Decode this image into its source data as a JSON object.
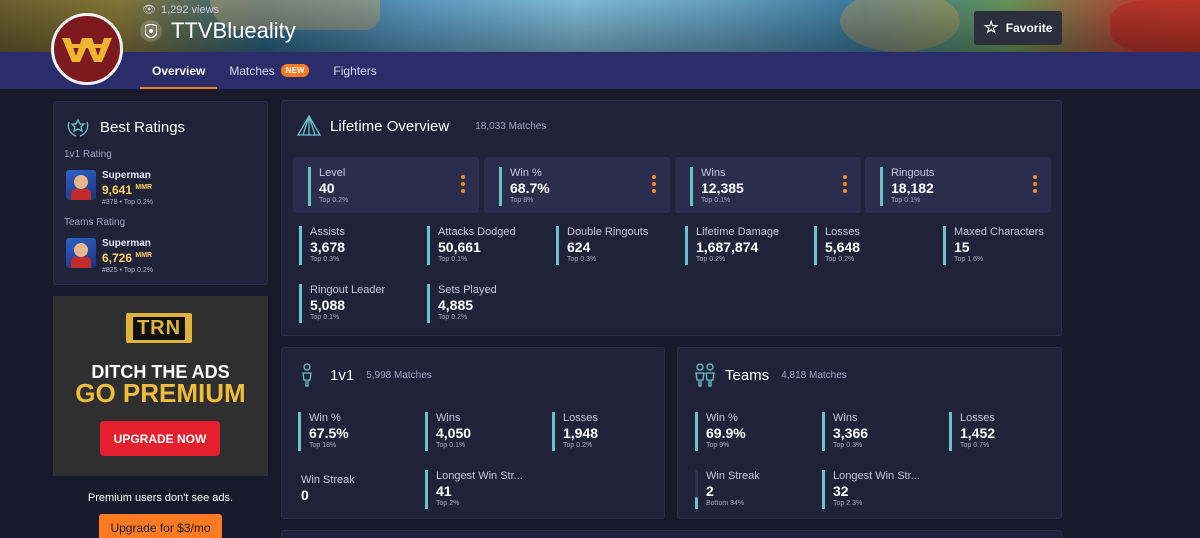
{
  "header": {
    "views": "1,292 views",
    "player_name": "TTVBlueality",
    "favorite_label": "Favorite",
    "icons": {
      "views": "eye-icon",
      "platform": "platform-shield-icon",
      "favorite": "star-icon",
      "avatar": "wonder-woman-emblem"
    },
    "colors": {
      "nav_bg": "#2b2d6b",
      "accent": "#ff7a22",
      "avatar_bg": "#7d1a1f"
    }
  },
  "nav": {
    "tabs": [
      {
        "label": "Overview",
        "active": true
      },
      {
        "label": "Matches",
        "badge": "NEW"
      },
      {
        "label": "Fighters"
      }
    ]
  },
  "best_ratings": {
    "title": "Best Ratings",
    "groups": [
      {
        "label": "1v1 Rating",
        "hero": "Superman",
        "value": "9,641",
        "unit": "MMR",
        "rank": "#378 • Top 0.2%"
      },
      {
        "label": "Teams Rating",
        "hero": "Superman",
        "value": "6,726",
        "unit": "MMR",
        "rank": "#825 • Top 0.2%"
      }
    ]
  },
  "ad": {
    "logo": "TRN",
    "line1": "DITCH THE ADS",
    "line2": "GO PREMIUM",
    "button": "UPGRADE NOW"
  },
  "premium": {
    "text": "Premium users don't see ads.",
    "button": "Upgrade for $3/mo"
  },
  "lifetime": {
    "title": "Lifetime Overview",
    "matches": "18,033 Matches",
    "big": [
      {
        "label": "Level",
        "value": "40",
        "rank": "Top 0.2%"
      },
      {
        "label": "Win %",
        "value": "68.7%",
        "rank": "Top 8%"
      },
      {
        "label": "Wins",
        "value": "12,385",
        "rank": "Top 0.1%"
      },
      {
        "label": "Ringouts",
        "value": "18,182",
        "rank": "Top 0.1%"
      }
    ],
    "small": [
      {
        "label": "Assists",
        "value": "3,678",
        "rank": "Top 0.3%"
      },
      {
        "label": "Attacks Dodged",
        "value": "50,661",
        "rank": "Top 0.1%"
      },
      {
        "label": "Double Ringouts",
        "value": "624",
        "rank": "Top 0.3%"
      },
      {
        "label": "Lifetime Damage",
        "value": "1,687,874",
        "rank": "Top 0.2%"
      },
      {
        "label": "Losses",
        "value": "5,648",
        "rank": "Top 0.2%"
      },
      {
        "label": "Maxed Characters",
        "value": "15",
        "rank": "Top 1.6%"
      },
      {
        "label": "Ringout Leader",
        "value": "5,088",
        "rank": "Top 0.1%"
      },
      {
        "label": "Sets Played",
        "value": "4,885",
        "rank": "Top 0.2%"
      }
    ]
  },
  "onev": {
    "title": "1v1",
    "matches": "5,998 Matches",
    "stats": [
      {
        "label": "Win %",
        "value": "67.5%",
        "rank": "Top 18%"
      },
      {
        "label": "Wins",
        "value": "4,050",
        "rank": "Top 0.1%"
      },
      {
        "label": "Losses",
        "value": "1,948",
        "rank": "Top 0.2%"
      },
      {
        "label": "Win Streak",
        "value": "0",
        "rank": ""
      },
      {
        "label": "Longest Win Str...",
        "value": "41",
        "rank": "Top 2%"
      }
    ]
  },
  "teams": {
    "title": "Teams",
    "matches": "4,818 Matches",
    "stats": [
      {
        "label": "Win %",
        "value": "69.9%",
        "rank": "Top 9%"
      },
      {
        "label": "Wins",
        "value": "3,366",
        "rank": "Top 0.3%"
      },
      {
        "label": "Losses",
        "value": "1,452",
        "rank": "Top 0.7%"
      },
      {
        "label": "Win Streak",
        "value": "2",
        "rank": "Bottom 34%"
      },
      {
        "label": "Longest Win Str...",
        "value": "32",
        "rank": "Top 2.3%"
      }
    ]
  }
}
